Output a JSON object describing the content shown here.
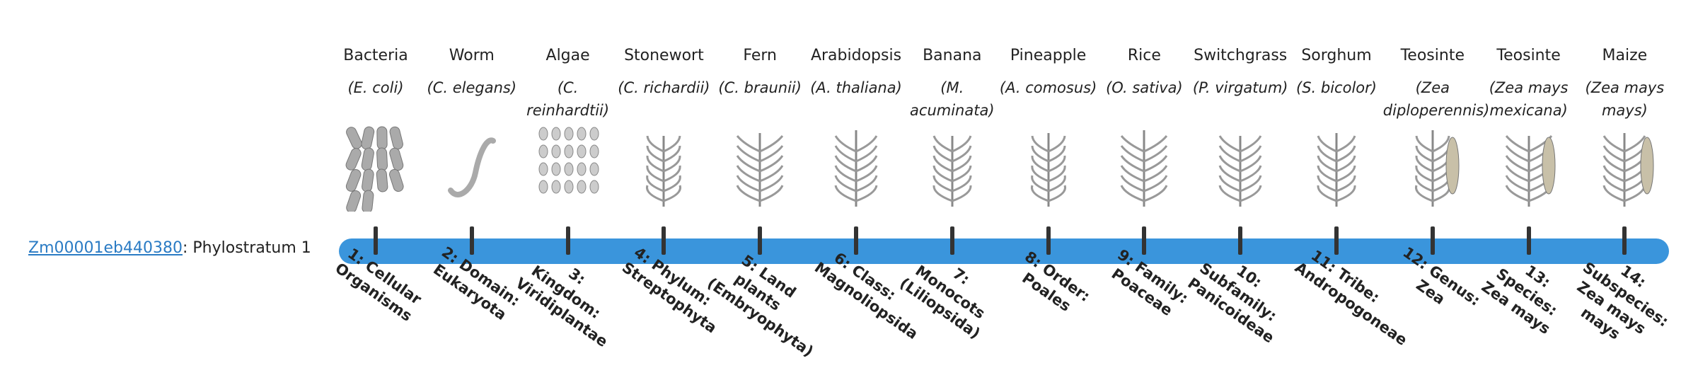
{
  "gene": {
    "id": "Zm00001eb440380",
    "suffix": ": Phylostratum 1"
  },
  "strata": [
    {
      "common": "Bacteria",
      "species": "(E. coli)",
      "label": "1: Cellular Organisms"
    },
    {
      "common": "Worm",
      "species": "(C. elegans)",
      "label": "2: Domain: Eukaryota"
    },
    {
      "common": "Algae",
      "species": "(C. reinhardtii)",
      "label": "3: Kingdom: Viridiplantae"
    },
    {
      "common": "Stonewort",
      "species": "(C. richardii)",
      "label": "4: Phylum: Streptophyta"
    },
    {
      "common": "Fern",
      "species": "(C. braunii)",
      "label": "5: Land plants (Embryophyta)"
    },
    {
      "common": "Arabidopsis",
      "species": "(A. thaliana)",
      "label": "6: Class: Magnoliopsida"
    },
    {
      "common": "Banana",
      "species": "(M. acuminata)",
      "label": "7: Monocots (Liliopsida)"
    },
    {
      "common": "Pineapple",
      "species": "(A. comosus)",
      "label": "8: Order: Poales"
    },
    {
      "common": "Rice",
      "species": "(O. sativa)",
      "label": "9: Family: Poaceae"
    },
    {
      "common": "Switchgrass",
      "species": "(P. virgatum)",
      "label": "10: Subfamily: Panicoideae"
    },
    {
      "common": "Sorghum",
      "species": "(S. bicolor)",
      "label": "11: Tribe: Andropogoneae"
    },
    {
      "common": "Teosinte",
      "species": "(Zea diploperennis)",
      "label": "12: Genus: Zea"
    },
    {
      "common": "Teosinte",
      "species": "(Zea mays mexicana)",
      "label": "13: Species: Zea mays"
    },
    {
      "common": "Maize",
      "species": "(Zea mays mays)",
      "label": "14: Subspecies: Zea mays mays"
    }
  ]
}
